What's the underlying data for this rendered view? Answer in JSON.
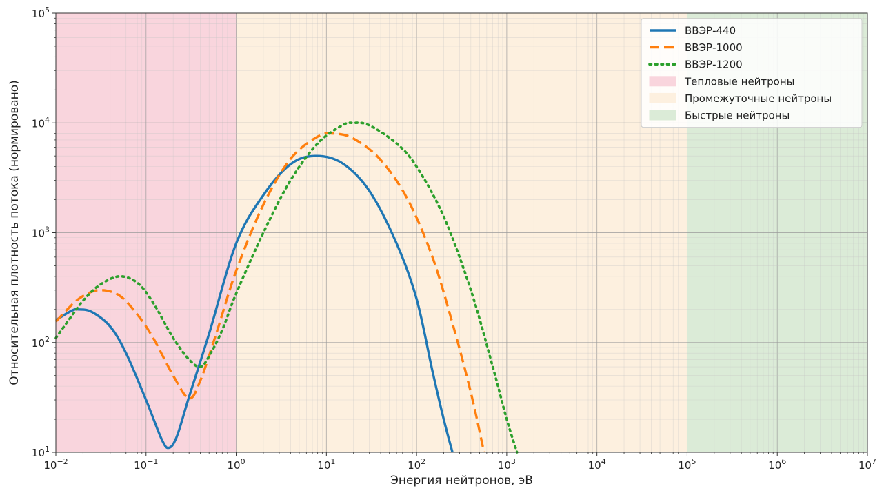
{
  "chart_data": {
    "type": "line",
    "xlabel": "Энергия нейтронов, эВ",
    "ylabel": "Относительная плотность потока (нормировано)",
    "xscale": "log",
    "yscale": "log",
    "xlim": [
      0.01,
      10000000
    ],
    "ylim": [
      10,
      100000
    ],
    "grid": "major and minor",
    "legend_position": "top-right",
    "x_ticks": [
      {
        "value": 0.01,
        "base": "10",
        "exp": "−2"
      },
      {
        "value": 0.1,
        "base": "10",
        "exp": "−1"
      },
      {
        "value": 1,
        "base": "10",
        "exp": "0"
      },
      {
        "value": 10,
        "base": "10",
        "exp": "1"
      },
      {
        "value": 100,
        "base": "10",
        "exp": "2"
      },
      {
        "value": 1000,
        "base": "10",
        "exp": "3"
      },
      {
        "value": 10000,
        "base": "10",
        "exp": "4"
      },
      {
        "value": 100000,
        "base": "10",
        "exp": "5"
      },
      {
        "value": 1000000,
        "base": "10",
        "exp": "6"
      },
      {
        "value": 10000000,
        "base": "10",
        "exp": "7"
      }
    ],
    "y_ticks": [
      {
        "value": 10,
        "base": "10",
        "exp": "1"
      },
      {
        "value": 100,
        "base": "10",
        "exp": "2"
      },
      {
        "value": 1000,
        "base": "10",
        "exp": "3"
      },
      {
        "value": 10000,
        "base": "10",
        "exp": "4"
      },
      {
        "value": 100000,
        "base": "10",
        "exp": "5"
      }
    ],
    "regions": [
      {
        "name": "Тепловые нейтроны",
        "x_start": 0.01,
        "x_end": 1,
        "color": "#f9d5dd"
      },
      {
        "name": "Промежуточные нейтроны",
        "x_start": 1,
        "x_end": 100000,
        "color": "#fdf0df"
      },
      {
        "name": "Быстрые нейтроны",
        "x_start": 100000,
        "x_end": 10000000,
        "color": "#dbebd7"
      }
    ],
    "series": [
      {
        "name": "ВВЭР-440",
        "color": "#1f77b4",
        "style": "solid",
        "points": [
          [
            0.01,
            160
          ],
          [
            0.015,
            195
          ],
          [
            0.018,
            200
          ],
          [
            0.025,
            190
          ],
          [
            0.04,
            140
          ],
          [
            0.06,
            80
          ],
          [
            0.1,
            30
          ],
          [
            0.15,
            13
          ],
          [
            0.18,
            11
          ],
          [
            0.22,
            14
          ],
          [
            0.3,
            32
          ],
          [
            0.5,
            120
          ],
          [
            1,
            800
          ],
          [
            2,
            2200
          ],
          [
            4,
            4200
          ],
          [
            7.5,
            5000
          ],
          [
            15,
            4300
          ],
          [
            30,
            2400
          ],
          [
            60,
            800
          ],
          [
            100,
            250
          ],
          [
            150,
            55
          ],
          [
            200,
            20
          ],
          [
            250,
            10
          ]
        ]
      },
      {
        "name": "ВВЭР-1000",
        "color": "#ff7f0e",
        "style": "dashed",
        "points": [
          [
            0.01,
            155
          ],
          [
            0.015,
            220
          ],
          [
            0.02,
            265
          ],
          [
            0.03,
            300
          ],
          [
            0.05,
            270
          ],
          [
            0.08,
            180
          ],
          [
            0.12,
            110
          ],
          [
            0.2,
            50
          ],
          [
            0.3,
            31
          ],
          [
            0.4,
            45
          ],
          [
            0.6,
            120
          ],
          [
            1,
            450
          ],
          [
            2,
            1800
          ],
          [
            4,
            4700
          ],
          [
            8,
            7500
          ],
          [
            12,
            8000
          ],
          [
            20,
            7200
          ],
          [
            40,
            4600
          ],
          [
            80,
            2000
          ],
          [
            150,
            600
          ],
          [
            250,
            150
          ],
          [
            400,
            35
          ],
          [
            560,
            10
          ]
        ]
      },
      {
        "name": "ВВЭР-1200",
        "color": "#2ca02c",
        "style": "dotted",
        "points": [
          [
            0.01,
            110
          ],
          [
            0.015,
            175
          ],
          [
            0.02,
            240
          ],
          [
            0.03,
            330
          ],
          [
            0.05,
            400
          ],
          [
            0.08,
            350
          ],
          [
            0.12,
            230
          ],
          [
            0.2,
            110
          ],
          [
            0.3,
            70
          ],
          [
            0.4,
            60
          ],
          [
            0.5,
            75
          ],
          [
            0.7,
            130
          ],
          [
            1,
            280
          ],
          [
            2,
            1000
          ],
          [
            4,
            3000
          ],
          [
            8,
            6500
          ],
          [
            15,
            9500
          ],
          [
            20,
            10000
          ],
          [
            30,
            9500
          ],
          [
            60,
            6500
          ],
          [
            100,
            4000
          ],
          [
            200,
            1400
          ],
          [
            400,
            300
          ],
          [
            700,
            60
          ],
          [
            1000,
            20
          ],
          [
            1300,
            10
          ]
        ]
      }
    ]
  }
}
